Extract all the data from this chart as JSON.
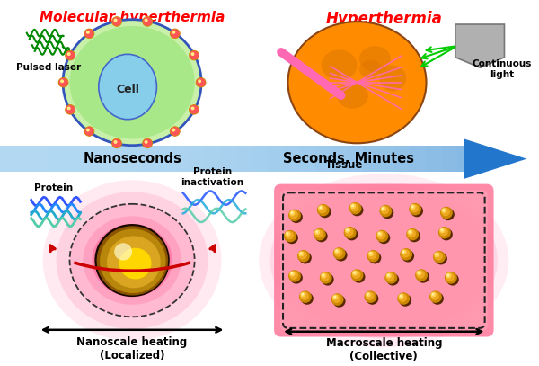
{
  "title_left": "Molecular hyperthermia",
  "title_right": "Hyperthermia",
  "label_nanoseconds": "Nanoseconds",
  "label_seconds": "Seconds, Minutes",
  "label_pulsed_laser": "Pulsed laser",
  "label_cell": "Cell",
  "label_tissue": "Tissue",
  "label_continuous": "Continuous\nlight",
  "label_protein": "Protein",
  "label_protein_inact": "Protein\ninactivation",
  "label_nanoscale": "Nanoscale heating\n(Localized)",
  "label_macroscale": "Macroscale heating\n(Collective)",
  "title_left_color": "#FF0000",
  "title_right_color": "#FF0000",
  "bg_color": "#ffffff"
}
